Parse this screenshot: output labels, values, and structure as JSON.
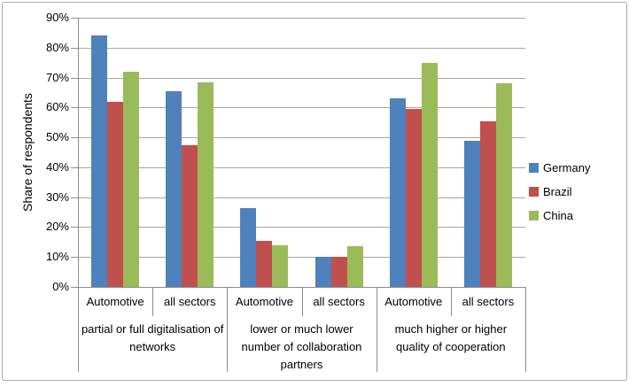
{
  "chart_data": {
    "type": "bar",
    "title": "",
    "ylabel": "Share of respondents",
    "xlabel": "",
    "ylim": [
      0,
      90
    ],
    "ytick_step": 10,
    "ytick_labels": [
      "0%",
      "10%",
      "20%",
      "30%",
      "40%",
      "50%",
      "60%",
      "70%",
      "80%",
      "90%"
    ],
    "grid": true,
    "legend_position": "right",
    "categories": [
      "Automotive",
      "all sectors",
      "Automotive",
      "all sectors",
      "Automotive",
      "all sectors"
    ],
    "groups": [
      {
        "label": "partial or full digitalisation of networks",
        "span": 2
      },
      {
        "label": "lower or much lower number of collaboration partners",
        "span": 2
      },
      {
        "label": "much higher or higher quality of cooperation",
        "span": 2
      }
    ],
    "series": [
      {
        "name": "Germany",
        "color": "#4f81bd",
        "values": [
          84,
          65.5,
          26.5,
          10,
          63,
          49
        ]
      },
      {
        "name": "Brazil",
        "color": "#c0504d",
        "values": [
          62,
          47.5,
          15.5,
          10,
          59.5,
          55.5
        ]
      },
      {
        "name": "China",
        "color": "#9bbb59",
        "values": [
          72,
          68.5,
          14,
          13.5,
          75,
          68
        ]
      }
    ]
  },
  "colors": {
    "gridline": "#a6a6a6",
    "axis": "#8c8c8c",
    "frame": "#a9a9b2",
    "text": "#000000",
    "background": "#ffffff"
  }
}
